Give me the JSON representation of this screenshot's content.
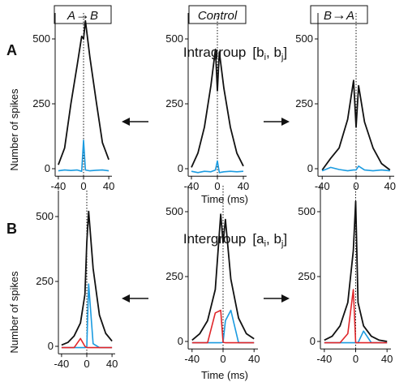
{
  "conditions": [
    {
      "label": "A",
      "arrow": "→",
      "label2": "B"
    },
    {
      "label": "Control"
    },
    {
      "label": "B",
      "arrow": "→",
      "label2": "A"
    }
  ],
  "panels": [
    {
      "letter": "A",
      "title_main": "Intragroup",
      "title_sub": "[b",
      "title_i": "i",
      "title_mid": ", b",
      "title_j": "j",
      "title_end": "]"
    },
    {
      "letter": "B",
      "title_main": "Intergroup",
      "title_sub": "[a",
      "title_i": "i",
      "title_mid": ", b",
      "title_j": "j",
      "title_end": "]"
    }
  ],
  "ylabel": "Number of spikes",
  "xlabel": "Time  (ms)",
  "colors": {
    "black": "#111111",
    "blue": "#1b9be0",
    "red": "#e0262a"
  },
  "arrows": {
    "left": "left-arrow-icon",
    "right": "right-arrow-icon"
  },
  "chart_data": [
    {
      "type": "line",
      "panel": "A",
      "condition": "A→B",
      "xlim": [
        -45,
        45
      ],
      "ylim": [
        -10,
        600
      ],
      "xticks": [
        -40,
        0,
        40
      ],
      "yticks": [
        0,
        250,
        500
      ],
      "series": [
        {
          "color": "black",
          "x": [
            -40,
            -30,
            -20,
            -10,
            -3,
            0,
            3,
            10,
            20,
            30,
            40
          ],
          "y": [
            15,
            80,
            250,
            400,
            510,
            500,
            570,
            430,
            260,
            100,
            35
          ]
        },
        {
          "color": "blue",
          "x": [
            -40,
            -30,
            -20,
            -10,
            -3,
            0,
            3,
            10,
            20,
            30,
            40
          ],
          "y": [
            -8,
            -5,
            -7,
            -5,
            -10,
            110,
            -5,
            -8,
            -6,
            -5,
            -8
          ]
        }
      ]
    },
    {
      "type": "line",
      "panel": "A",
      "condition": "Control",
      "xlim": [
        -45,
        45
      ],
      "ylim": [
        -10,
        600
      ],
      "xticks": [
        -40,
        0,
        40
      ],
      "yticks": [
        0,
        250,
        500
      ],
      "series": [
        {
          "color": "black",
          "x": [
            -40,
            -30,
            -20,
            -10,
            -3,
            0,
            3,
            10,
            20,
            30,
            40
          ],
          "y": [
            5,
            60,
            160,
            320,
            460,
            300,
            450,
            310,
            160,
            60,
            10
          ]
        },
        {
          "color": "blue",
          "x": [
            -40,
            -30,
            -20,
            -10,
            -3,
            0,
            3,
            10,
            20,
            30,
            40
          ],
          "y": [
            -10,
            -15,
            -10,
            -12,
            -5,
            30,
            -15,
            -12,
            -10,
            -12,
            -10
          ]
        }
      ]
    },
    {
      "type": "line",
      "panel": "A",
      "condition": "B→A",
      "xlim": [
        -45,
        45
      ],
      "ylim": [
        -10,
        600
      ],
      "xticks": [
        -40,
        0,
        40
      ],
      "yticks": [
        0,
        250,
        500
      ],
      "series": [
        {
          "color": "black",
          "x": [
            -40,
            -30,
            -20,
            -10,
            -3,
            0,
            3,
            10,
            20,
            30,
            40
          ],
          "y": [
            -5,
            40,
            80,
            190,
            340,
            160,
            320,
            180,
            80,
            20,
            -5
          ]
        },
        {
          "color": "blue",
          "x": [
            -40,
            -30,
            -20,
            -10,
            -3,
            0,
            3,
            10,
            20,
            30,
            40
          ],
          "y": [
            -8,
            5,
            -3,
            -8,
            -5,
            -5,
            10,
            -5,
            -8,
            -5,
            -8
          ]
        }
      ]
    },
    {
      "type": "line",
      "panel": "B",
      "condition": "A→B",
      "xlim": [
        -45,
        45
      ],
      "ylim": [
        -10,
        600
      ],
      "xticks": [
        -40,
        0,
        40
      ],
      "yticks": [
        0,
        250,
        500
      ],
      "series": [
        {
          "color": "black",
          "x": [
            -40,
            -30,
            -20,
            -10,
            -3,
            0,
            3,
            10,
            20,
            30,
            40
          ],
          "y": [
            5,
            15,
            40,
            90,
            200,
            400,
            520,
            300,
            120,
            50,
            20
          ]
        },
        {
          "color": "blue",
          "x": [
            -40,
            -30,
            -20,
            -10,
            -3,
            0,
            3,
            10,
            20,
            30,
            40
          ],
          "y": [
            -5,
            -5,
            -5,
            -5,
            -5,
            -3,
            240,
            10,
            -5,
            -5,
            -5
          ]
        },
        {
          "color": "red",
          "x": [
            -40,
            -30,
            -20,
            -10,
            -3,
            0,
            3,
            10,
            20,
            30,
            40
          ],
          "y": [
            -5,
            -5,
            -5,
            30,
            0,
            -5,
            -5,
            -5,
            -5,
            -5,
            -5
          ]
        }
      ]
    },
    {
      "type": "line",
      "panel": "B",
      "condition": "Control",
      "xlim": [
        -45,
        45
      ],
      "ylim": [
        -10,
        600
      ],
      "xticks": [
        -40,
        0,
        40
      ],
      "yticks": [
        0,
        250,
        500
      ],
      "series": [
        {
          "color": "black",
          "x": [
            -40,
            -30,
            -20,
            -10,
            -3,
            0,
            3,
            10,
            20,
            30,
            40
          ],
          "y": [
            5,
            30,
            80,
            200,
            490,
            380,
            470,
            240,
            90,
            30,
            10
          ]
        },
        {
          "color": "blue",
          "x": [
            -40,
            -30,
            -20,
            -10,
            -3,
            0,
            3,
            10,
            20,
            30,
            40
          ],
          "y": [
            -5,
            -5,
            -5,
            -5,
            -5,
            -3,
            80,
            120,
            -5,
            -5,
            -5
          ]
        },
        {
          "color": "red",
          "x": [
            -40,
            -30,
            -20,
            -10,
            -3,
            0,
            3,
            10,
            20,
            30,
            40
          ],
          "y": [
            -5,
            -5,
            -5,
            110,
            120,
            -3,
            -5,
            -5,
            -5,
            -5,
            -5
          ]
        }
      ]
    },
    {
      "type": "line",
      "panel": "B",
      "condition": "B→A",
      "xlim": [
        -45,
        45
      ],
      "ylim": [
        -10,
        600
      ],
      "xticks": [
        -40,
        0,
        40
      ],
      "yticks": [
        0,
        250,
        500
      ],
      "series": [
        {
          "color": "black",
          "x": [
            -40,
            -30,
            -20,
            -10,
            -3,
            0,
            3,
            10,
            20,
            30,
            40
          ],
          "y": [
            5,
            20,
            60,
            150,
            350,
            540,
            150,
            60,
            20,
            5,
            0
          ]
        },
        {
          "color": "blue",
          "x": [
            -40,
            -30,
            -20,
            -10,
            -3,
            0,
            3,
            10,
            20,
            30,
            40
          ],
          "y": [
            -5,
            -5,
            -5,
            -5,
            -5,
            -5,
            -5,
            40,
            -5,
            -5,
            -5
          ]
        },
        {
          "color": "red",
          "x": [
            -40,
            -30,
            -20,
            -10,
            -3,
            0,
            3,
            10,
            20,
            30,
            40
          ],
          "y": [
            -5,
            -5,
            -5,
            30,
            200,
            -5,
            -5,
            -5,
            -5,
            -5,
            -5
          ]
        }
      ]
    }
  ]
}
